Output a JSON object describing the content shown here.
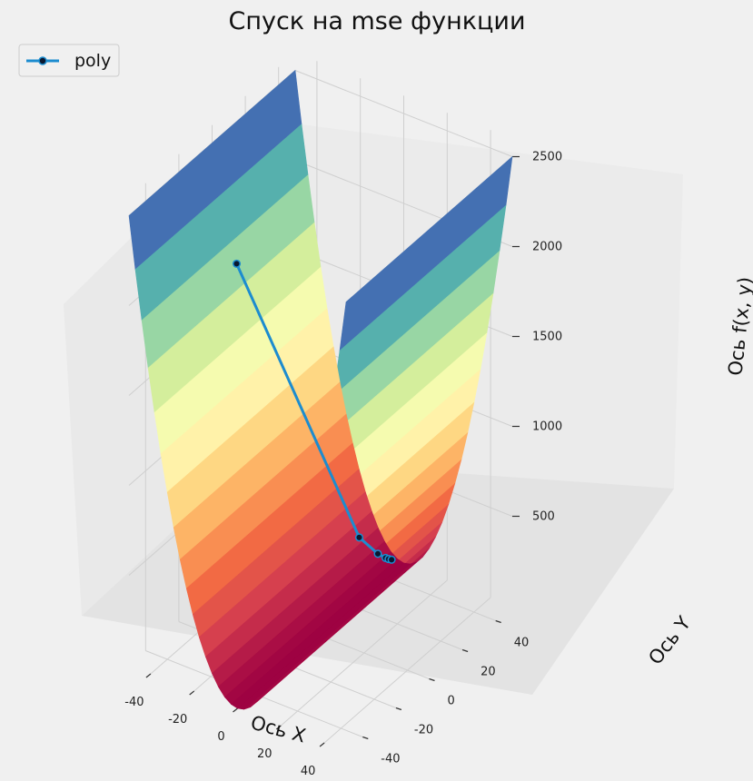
{
  "chart_data": {
    "type": "surface3d",
    "title": "Спуск на mse функции",
    "xlabel": "Ось X",
    "ylabel": "Ось Y",
    "zlabel": "Ось f(x, y)",
    "x_ticks": [
      -40,
      -20,
      0,
      20,
      40
    ],
    "y_ticks": [
      -40,
      -20,
      0,
      20,
      40
    ],
    "z_ticks": [
      500,
      1000,
      1500,
      2000,
      2500
    ],
    "xlim": [
      -50,
      50
    ],
    "ylim": [
      -50,
      50
    ],
    "zlim": [
      0,
      2600
    ],
    "surface": {
      "function": "x^2",
      "colormap": "Spectral"
    },
    "colormap_stops": [
      "#9e0142",
      "#d53e4f",
      "#f46d43",
      "#fdae61",
      "#fee08b",
      "#ffffbf",
      "#e6f598",
      "#abdda4",
      "#66c2a5",
      "#3288bd",
      "#5e4fa2"
    ],
    "series": [
      {
        "name": "poly",
        "color": "#1c8ccf",
        "points": [
          {
            "x": -5,
            "y": -44,
            "z": 2400
          },
          {
            "x": 4,
            "y": 18,
            "z": 420
          },
          {
            "x": 8,
            "y": 24,
            "z": 300
          },
          {
            "x": 10,
            "y": 26,
            "z": 270
          },
          {
            "x": 11,
            "y": 26.5,
            "z": 265
          },
          {
            "x": 12,
            "y": 27,
            "z": 262
          }
        ]
      }
    ],
    "legend": {
      "position": "top-left",
      "entries": [
        "poly"
      ]
    },
    "grid": true
  }
}
